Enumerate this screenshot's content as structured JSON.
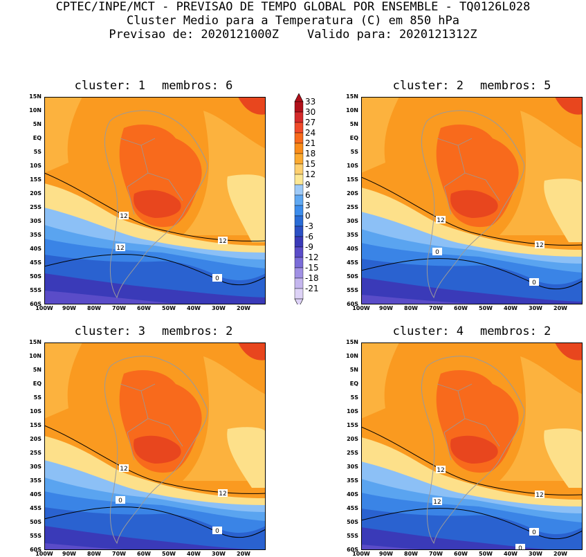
{
  "header": {
    "line1": "CPTEC/INPE/MCT - PREVISAO DE TEMPO GLOBAL POR ENSEMBLE - TQ0126L028",
    "line2": "Cluster Medio para a Temperatura (C) em 850 hPa",
    "line3_label_forecast": "Previsao de: 2020121000Z",
    "line3_label_valid": "Valido para: 2020121312Z"
  },
  "panels": [
    {
      "cluster_label": "cluster: 1",
      "members_label": "membros: 6"
    },
    {
      "cluster_label": "cluster: 2",
      "members_label": "membros: 5"
    },
    {
      "cluster_label": "cluster: 3",
      "members_label": "membros: 2"
    },
    {
      "cluster_label": "cluster: 4",
      "members_label": "membros: 2"
    }
  ],
  "lat_ticks": [
    "15N",
    "10N",
    "5N",
    "EQ",
    "5S",
    "10S",
    "15S",
    "20S",
    "25S",
    "30S",
    "35S",
    "40S",
    "45S",
    "50S",
    "55S",
    "60S"
  ],
  "lon_ticks": [
    "100W",
    "90W",
    "80W",
    "70W",
    "60W",
    "50W",
    "40W",
    "30W",
    "20W"
  ],
  "colorbar": {
    "labels": [
      "33",
      "30",
      "27",
      "24",
      "21",
      "18",
      "15",
      "12",
      "9",
      "6",
      "3",
      "0",
      "-3",
      "-6",
      "-9",
      "-12",
      "-15",
      "-18",
      "-21"
    ],
    "colors": [
      "#b0101a",
      "#d42a2a",
      "#f04a2a",
      "#f86a1c",
      "#fa8c1a",
      "#fcaa30",
      "#ffd070",
      "#fde895",
      "#9ecaf8",
      "#5fa8f2",
      "#3c8cec",
      "#2a6cd6",
      "#2c50c4",
      "#3a3ab8",
      "#5a4cc8",
      "#7a6cd8",
      "#a090e4",
      "#c4b6ee",
      "#ddd2f6"
    ],
    "top_arrow_color": "#b0101a",
    "bottom_arrow_color": "#ddd2f6"
  },
  "contour_labels": {
    "p1": [
      "12",
      "12",
      "12",
      "0"
    ],
    "p2": [
      "12",
      "12",
      "0",
      "0"
    ],
    "p3": [
      "12",
      "12",
      "0",
      "0"
    ],
    "p4": [
      "12",
      "12",
      "12",
      "0",
      "0"
    ]
  }
}
